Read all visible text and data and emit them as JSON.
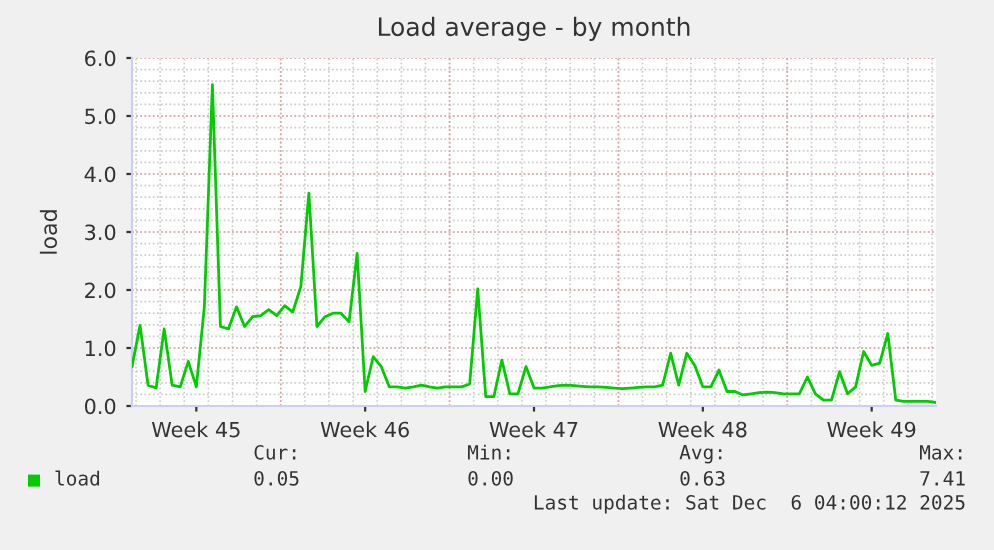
{
  "chart_data": {
    "type": "line",
    "title": "Load average - by month",
    "ylabel": "load",
    "categories": [
      null,
      null,
      null,
      null,
      null,
      null,
      null,
      null,
      "Week 45",
      null,
      null,
      null,
      null,
      null,
      null,
      null,
      null,
      null,
      null,
      null,
      null,
      null,
      null,
      null,
      null,
      null,
      null,
      null,
      null,
      "Week 46",
      null,
      null,
      null,
      null,
      null,
      null,
      null,
      null,
      null,
      null,
      null,
      null,
      null,
      null,
      null,
      null,
      null,
      null,
      null,
      null,
      "Week 47",
      null,
      null,
      null,
      null,
      null,
      null,
      null,
      null,
      null,
      null,
      null,
      null,
      null,
      null,
      null,
      null,
      null,
      null,
      null,
      null,
      "Week 48",
      null,
      null,
      null,
      null,
      null,
      null,
      null,
      null,
      null,
      null,
      null,
      null,
      null,
      null,
      null,
      null,
      null,
      null,
      null,
      null,
      "Week 49",
      null,
      null,
      null,
      null,
      null,
      null,
      null,
      null
    ],
    "series": [
      {
        "name": "load",
        "color": "#00cc00",
        "values": [
          0.68,
          1.39,
          0.36,
          0.31,
          1.33,
          0.36,
          0.33,
          0.77,
          0.33,
          1.71,
          5.54,
          1.37,
          1.33,
          1.71,
          1.37,
          1.54,
          1.56,
          1.66,
          1.56,
          1.73,
          1.62,
          2.06,
          3.67,
          1.37,
          1.54,
          1.6,
          1.6,
          1.45,
          2.63,
          0.25,
          0.85,
          0.68,
          0.33,
          0.33,
          0.31,
          0.33,
          0.36,
          0.33,
          0.31,
          0.33,
          0.33,
          0.33,
          0.38,
          2.02,
          0.16,
          0.16,
          0.79,
          0.21,
          0.21,
          0.68,
          0.31,
          0.31,
          0.33,
          0.35,
          0.36,
          0.35,
          0.34,
          0.33,
          0.33,
          0.32,
          0.31,
          0.3,
          0.31,
          0.32,
          0.33,
          0.33,
          0.36,
          0.91,
          0.36,
          0.91,
          0.7,
          0.33,
          0.33,
          0.62,
          0.25,
          0.25,
          0.19,
          0.21,
          0.23,
          0.24,
          0.23,
          0.21,
          0.21,
          0.21,
          0.5,
          0.21,
          0.1,
          0.1,
          0.59,
          0.21,
          0.33,
          0.94,
          0.7,
          0.74,
          1.25,
          0.1,
          0.08,
          0.08,
          0.08,
          0.08,
          0.06
        ]
      }
    ],
    "ylim": [
      0,
      6
    ],
    "yticks": [
      {
        "value": 0,
        "label": "0.0"
      },
      {
        "value": 1,
        "label": "1.0"
      },
      {
        "value": 2,
        "label": "2.0"
      },
      {
        "value": 3,
        "label": "3.0"
      },
      {
        "value": 4,
        "label": "4.0"
      },
      {
        "value": 5,
        "label": "5.0"
      },
      {
        "value": 6,
        "label": "6.0"
      }
    ],
    "grid": true,
    "legend": "bottom left",
    "line_style": "solid",
    "marker": "none",
    "annotations": [
      "Cur:",
      "0.05",
      "Min:",
      "0.00",
      "Avg:",
      "0.63",
      "Max:",
      "7.41",
      "Last update: Sat Dec  6 04:00:12 2025"
    ]
  }
}
